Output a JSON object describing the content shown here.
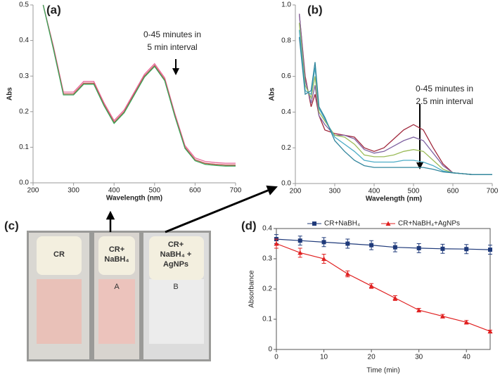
{
  "chart_data": [
    {
      "type": "line",
      "label": "(a)",
      "xlabel": "Wavelength (nm)",
      "ylabel": "Abs",
      "annotation": [
        "0-45 minutes in",
        "5 min interval"
      ],
      "xlim": [
        200,
        700
      ],
      "ylim": [
        0,
        0.5
      ],
      "xticks": [
        200,
        300,
        400,
        500,
        600,
        700
      ],
      "yticks": [
        {
          "value": 0,
          "label": "0.0"
        },
        0.1,
        0.2,
        0.3,
        0.4,
        0.5
      ],
      "x": [
        225,
        250,
        275,
        300,
        325,
        350,
        375,
        400,
        425,
        450,
        475,
        500,
        525,
        550,
        575,
        600,
        625,
        650,
        675,
        700
      ],
      "series": [
        {
          "color": "#e8699a",
          "values": [
            0.5,
            0.385,
            0.255,
            0.255,
            0.285,
            0.285,
            0.225,
            0.175,
            0.205,
            0.255,
            0.305,
            0.335,
            0.295,
            0.195,
            0.105,
            0.07,
            0.06,
            0.057,
            0.055,
            0.055
          ]
        },
        {
          "color": "#c0504d",
          "values": [
            0.5,
            0.38,
            0.25,
            0.25,
            0.28,
            0.28,
            0.22,
            0.17,
            0.2,
            0.25,
            0.3,
            0.33,
            0.29,
            0.19,
            0.1,
            0.065,
            0.055,
            0.052,
            0.05,
            0.05
          ]
        },
        {
          "color": "#3aa65a",
          "values": [
            0.5,
            0.377,
            0.247,
            0.247,
            0.277,
            0.277,
            0.217,
            0.167,
            0.197,
            0.247,
            0.297,
            0.327,
            0.287,
            0.187,
            0.097,
            0.062,
            0.052,
            0.049,
            0.047,
            0.047
          ]
        }
      ]
    },
    {
      "type": "line",
      "label": "(b)",
      "xlabel": "Wavelength (nm)",
      "ylabel": "Abs",
      "annotation": [
        "0-45 minutes in",
        "2.5 min interval"
      ],
      "xlim": [
        200,
        700
      ],
      "ylim": [
        0,
        1
      ],
      "xticks": [
        200,
        300,
        400,
        500,
        600,
        700
      ],
      "yticks": [
        {
          "value": 0,
          "label": "0.0"
        },
        0.2,
        0.4,
        0.6,
        0.8,
        {
          "value": 1,
          "label": "1.0"
        }
      ],
      "x": [
        210,
        225,
        240,
        250,
        260,
        275,
        300,
        325,
        350,
        375,
        400,
        425,
        450,
        475,
        500,
        525,
        550,
        575,
        600,
        625,
        650,
        700
      ],
      "series": [
        {
          "color": "#a0283c",
          "values": [
            0.95,
            0.6,
            0.43,
            0.5,
            0.38,
            0.3,
            0.28,
            0.27,
            0.26,
            0.2,
            0.18,
            0.2,
            0.25,
            0.3,
            0.33,
            0.3,
            0.2,
            0.11,
            0.06,
            0.055,
            0.05,
            0.05
          ]
        },
        {
          "color": "#8064a2",
          "values": [
            0.95,
            0.58,
            0.45,
            0.55,
            0.38,
            0.33,
            0.27,
            0.27,
            0.25,
            0.19,
            0.17,
            0.18,
            0.21,
            0.24,
            0.26,
            0.24,
            0.17,
            0.1,
            0.06,
            0.055,
            0.05,
            0.05
          ]
        },
        {
          "color": "#9bbb59",
          "values": [
            0.9,
            0.55,
            0.48,
            0.6,
            0.4,
            0.35,
            0.27,
            0.26,
            0.22,
            0.16,
            0.15,
            0.15,
            0.16,
            0.18,
            0.19,
            0.18,
            0.13,
            0.08,
            0.06,
            0.055,
            0.05,
            0.05
          ]
        },
        {
          "color": "#4bacc6",
          "values": [
            0.86,
            0.52,
            0.5,
            0.65,
            0.42,
            0.36,
            0.26,
            0.22,
            0.18,
            0.13,
            0.12,
            0.12,
            0.12,
            0.13,
            0.13,
            0.12,
            0.1,
            0.07,
            0.06,
            0.055,
            0.05,
            0.05
          ]
        },
        {
          "color": "#31859c",
          "values": [
            0.82,
            0.5,
            0.52,
            0.68,
            0.43,
            0.37,
            0.24,
            0.18,
            0.13,
            0.1,
            0.09,
            0.09,
            0.09,
            0.09,
            0.09,
            0.09,
            0.08,
            0.065,
            0.06,
            0.055,
            0.05,
            0.05
          ]
        }
      ]
    },
    {
      "type": "errorline",
      "label": "(d)",
      "xlabel": "Time (min)",
      "ylabel": "Absorbance",
      "xlim": [
        0,
        45
      ],
      "ylim": [
        0,
        0.4
      ],
      "xticks": [
        0,
        10,
        20,
        30,
        40
      ],
      "yticks": [
        0,
        0.1,
        0.2,
        0.3,
        0.4
      ],
      "x": [
        0,
        5,
        10,
        15,
        20,
        25,
        30,
        35,
        40,
        45
      ],
      "series": [
        {
          "name": "CR+NaBH₄",
          "color": "#1f3a7a",
          "marker": "square",
          "values": [
            0.365,
            0.36,
            0.355,
            0.35,
            0.345,
            0.338,
            0.335,
            0.333,
            0.332,
            0.33
          ],
          "errors": [
            0.015,
            0.015,
            0.015,
            0.015,
            0.015,
            0.015,
            0.015,
            0.015,
            0.015,
            0.015
          ]
        },
        {
          "name": "CR+NaBH₄+AgNPs",
          "color": "#e02020",
          "marker": "triangle",
          "values": [
            0.35,
            0.32,
            0.3,
            0.25,
            0.21,
            0.17,
            0.13,
            0.11,
            0.09,
            0.06
          ],
          "errors": [
            0.015,
            0.015,
            0.015,
            0.01,
            0.008,
            0.008,
            0.006,
            0.006,
            0.006,
            0.004
          ]
        }
      ]
    }
  ],
  "photo": {
    "label": "(c)",
    "vials": [
      {
        "cap": [
          "CR"
        ]
      },
      {
        "cap": [
          "CR+",
          "NaBH₄"
        ],
        "letter": "A"
      },
      {
        "cap": [
          "CR+",
          "NaBH₄ +",
          "AgNPs"
        ],
        "letter": "B"
      }
    ]
  }
}
